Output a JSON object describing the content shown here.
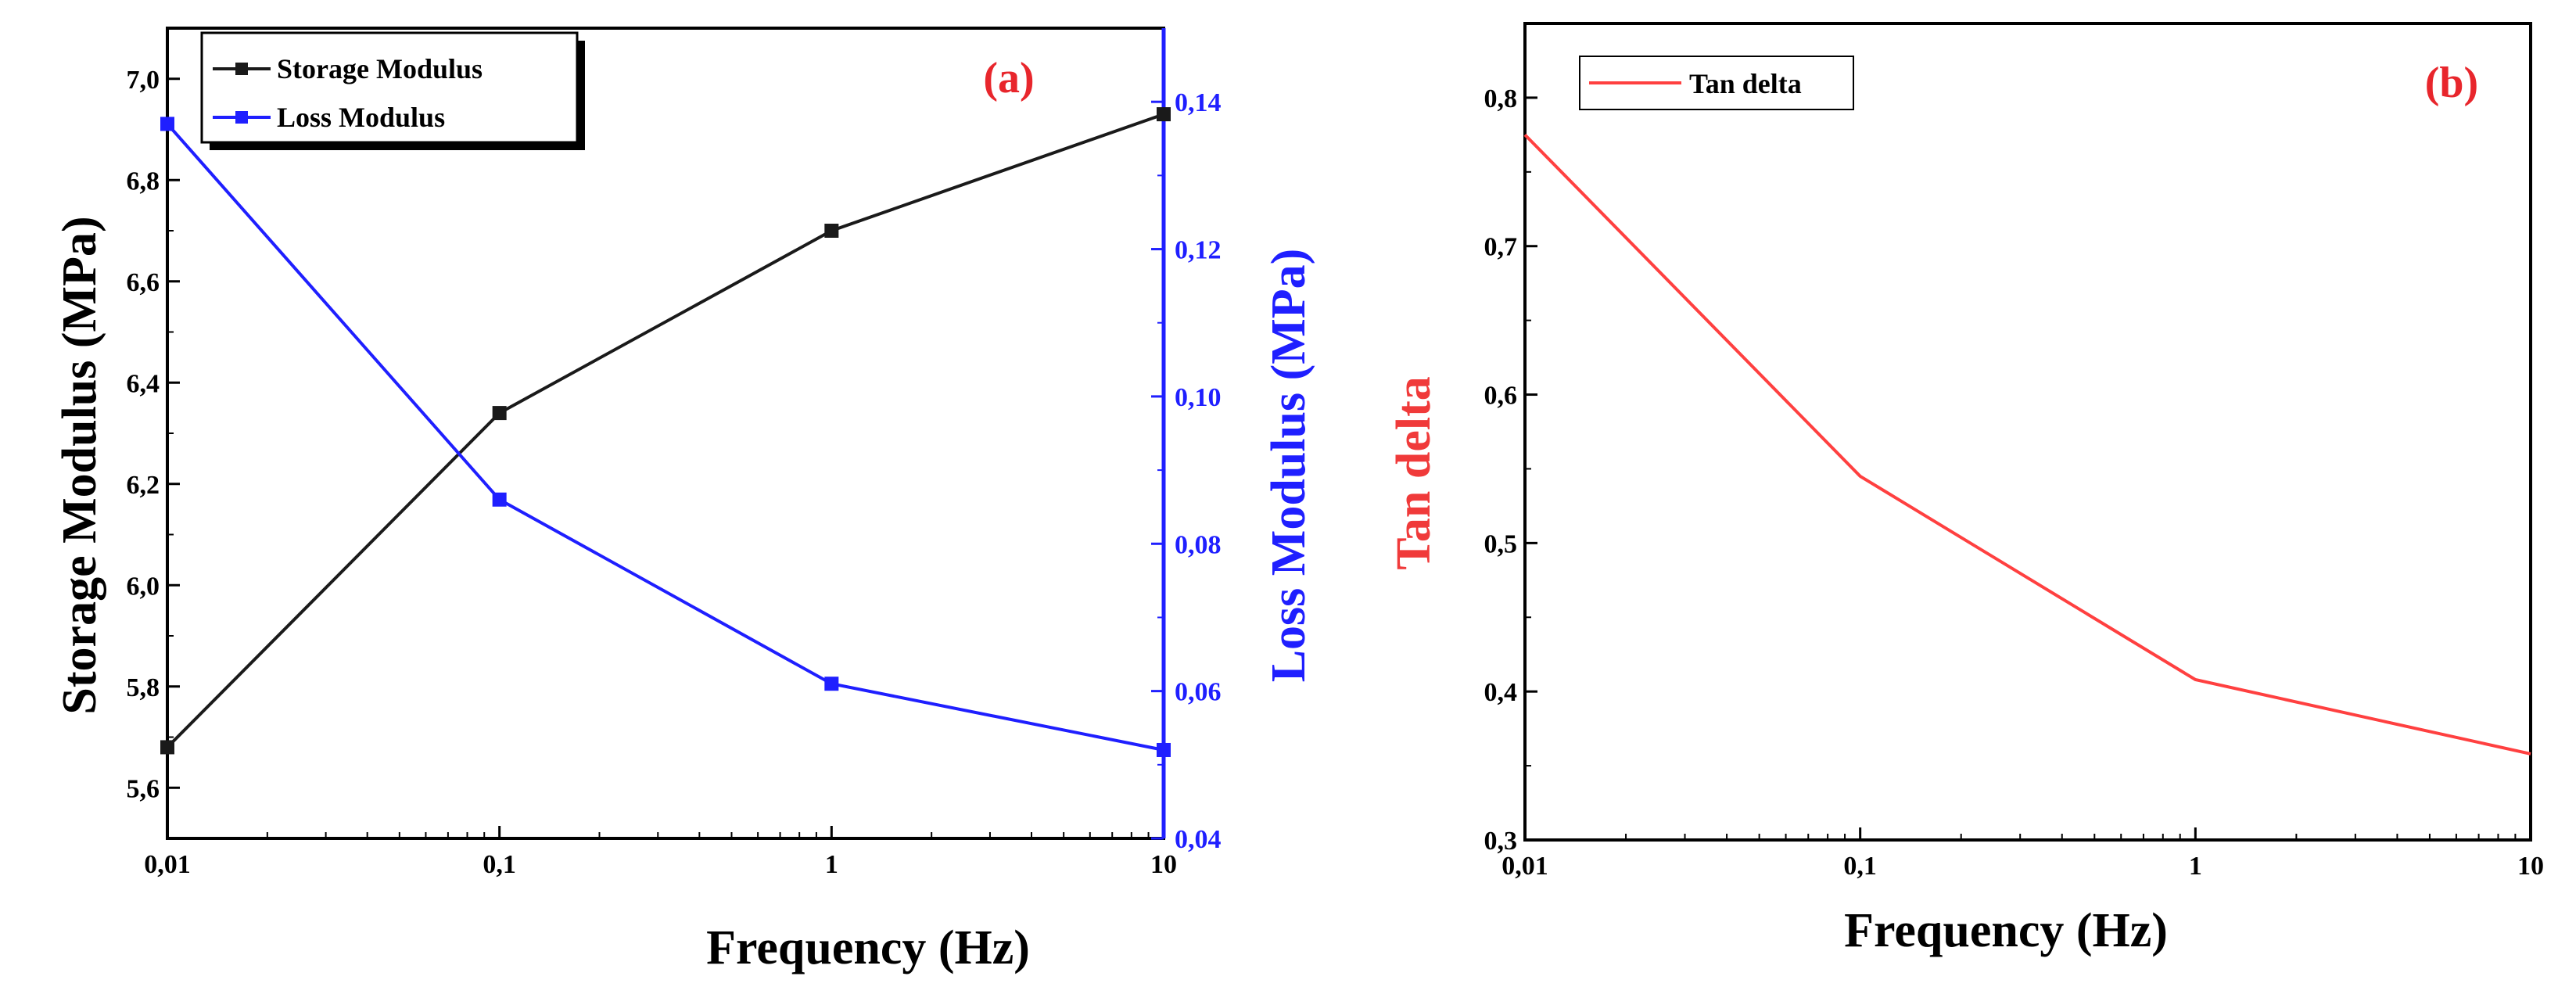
{
  "chart_data": [
    {
      "type": "line",
      "panel_label": "(a)",
      "x": [
        0.01,
        0.1,
        1,
        10
      ],
      "x_tick_labels": [
        "0,01",
        "0,1",
        "1",
        "10"
      ],
      "xlabel": "Frequency (Hz)",
      "x_scale": "log",
      "xlim": [
        0.01,
        10
      ],
      "ylabel": "Storage Modulus (MPa)",
      "ylim": [
        5.5,
        7.1
      ],
      "y_tick_labels": [
        "5,6",
        "5,8",
        "6,0",
        "6,2",
        "6,4",
        "6,6",
        "6,8",
        "7,0"
      ],
      "y_ticks": [
        5.6,
        5.8,
        6.0,
        6.2,
        6.4,
        6.6,
        6.8,
        7.0
      ],
      "y2label": "Loss Modulus (MPa)",
      "y2lim": [
        0.04,
        0.15
      ],
      "y2_tick_labels": [
        "0,04",
        "0,06",
        "0,08",
        "0,10",
        "0,12",
        "0,14"
      ],
      "y2_ticks": [
        0.04,
        0.06,
        0.08,
        0.1,
        0.12,
        0.14
      ],
      "legend_position": "top-left",
      "grid": false,
      "series": [
        {
          "name": "Storage Modulus",
          "axis": "left",
          "color": "#1a1a1a",
          "marker": "square",
          "values": [
            5.68,
            6.34,
            6.7,
            6.93
          ]
        },
        {
          "name": "Loss Modulus",
          "axis": "right",
          "color": "#1f1fff",
          "marker": "square",
          "values": [
            0.137,
            0.086,
            0.061,
            0.052
          ]
        }
      ]
    },
    {
      "type": "line",
      "panel_label": "(b)",
      "x": [
        0.01,
        0.1,
        1,
        10
      ],
      "x_tick_labels": [
        "0,01",
        "0,1",
        "1",
        "10"
      ],
      "xlabel": "Frequency (Hz)",
      "x_scale": "log",
      "xlim": [
        0.01,
        10
      ],
      "ylabel": "Tan delta",
      "ylim": [
        0.3,
        0.85
      ],
      "y_tick_labels": [
        "0,3",
        "0,4",
        "0,5",
        "0,6",
        "0,7",
        "0,8"
      ],
      "y_ticks": [
        0.3,
        0.4,
        0.5,
        0.6,
        0.7,
        0.8
      ],
      "legend_position": "top-left",
      "grid": false,
      "series": [
        {
          "name": "Tan delta",
          "axis": "left",
          "color": "#ff4040",
          "marker": "none",
          "values": [
            0.775,
            0.545,
            0.408,
            0.358
          ]
        }
      ]
    }
  ],
  "colors": {
    "axis": "#000000",
    "storage": "#1a1a1a",
    "loss": "#1f1fff",
    "tan_delta": "#ff4040",
    "panel_tag": "#e8262c",
    "tan_label": "#f03a3a"
  }
}
